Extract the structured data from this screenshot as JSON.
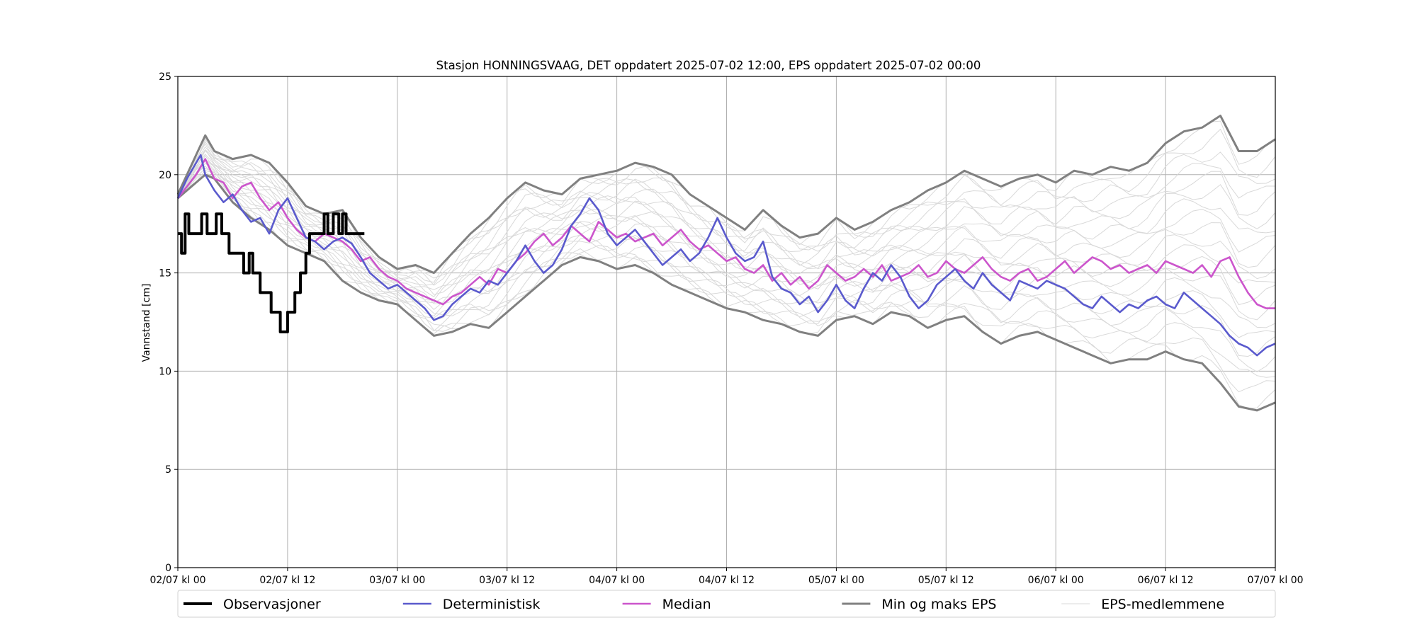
{
  "chart_data": {
    "type": "line",
    "title": "Stasjon HONNINGSVAAG, DET oppdatert 2025-07-02 12:00, EPS oppdatert 2025-07-02 00:00",
    "xlabel": "",
    "ylabel": "Vannstand [cm]",
    "xlim_hours": [
      0,
      120
    ],
    "ylim": [
      0,
      25
    ],
    "yticks": [
      0,
      5,
      10,
      15,
      20,
      25
    ],
    "grid": true,
    "legend_position": "bottom",
    "x_unit": "hours from 02/07 kl 00",
    "x_ticks": [
      {
        "h": 0,
        "label": "02/07 kl 00"
      },
      {
        "h": 12,
        "label": "02/07 kl 12"
      },
      {
        "h": 24,
        "label": "03/07 kl 00"
      },
      {
        "h": 36,
        "label": "03/07 kl 12"
      },
      {
        "h": 48,
        "label": "04/07 kl 00"
      },
      {
        "h": 60,
        "label": "04/07 kl 12"
      },
      {
        "h": 72,
        "label": "05/07 kl 00"
      },
      {
        "h": 84,
        "label": "05/07 kl 12"
      },
      {
        "h": 96,
        "label": "06/07 kl 00"
      },
      {
        "h": 108,
        "label": "06/07 kl 12"
      },
      {
        "h": 120,
        "label": "07/07 kl 00"
      }
    ],
    "series": [
      {
        "name": "Observasjoner",
        "color": "#000000",
        "width": 4,
        "step": true,
        "x": [
          0,
          0.4,
          0.8,
          1.2,
          2,
          2.6,
          3.2,
          4.2,
          4.8,
          5.2,
          5.6,
          6.0,
          7.2,
          7.8,
          8.2,
          8.6,
          9.0,
          9.6,
          10.2,
          10.6,
          11.2,
          12.0,
          12.4,
          12.8,
          13.4,
          14.0,
          14.4,
          14.8,
          15.2,
          15.6,
          16.0,
          16.4,
          17.0,
          17.6,
          18.0,
          18.4,
          18.8,
          19.2,
          19.6,
          20.4
        ],
        "y": [
          17,
          16,
          18,
          17,
          17,
          18,
          17,
          18,
          17,
          17,
          16,
          16,
          15,
          16,
          15,
          15,
          14,
          14,
          13,
          13,
          12,
          13,
          13,
          14,
          15,
          16,
          17,
          17,
          17,
          17,
          18,
          17,
          18,
          17,
          18,
          17,
          17,
          17,
          17,
          17
        ]
      },
      {
        "name": "Deterministisk",
        "color": "#5a5acd",
        "width": 2.6,
        "x": [
          0,
          1,
          2,
          2.5,
          3,
          4,
          5,
          6,
          7,
          8,
          9,
          10,
          11,
          12,
          13,
          14,
          15,
          16,
          17,
          18,
          19,
          20,
          21,
          22,
          23,
          24,
          25,
          26,
          27,
          28,
          29,
          30,
          31,
          32,
          33,
          34,
          35,
          36,
          37,
          38,
          39,
          40,
          41,
          42,
          43,
          44,
          45,
          46,
          47,
          48,
          49,
          50,
          51,
          52,
          53,
          54,
          55,
          56,
          57,
          58,
          59,
          60,
          61,
          62,
          63,
          64,
          65,
          66,
          67,
          68,
          69,
          70,
          71,
          72,
          73,
          74,
          75,
          76,
          77,
          78,
          79,
          80,
          81,
          82,
          83,
          84,
          85,
          86,
          87,
          88,
          89,
          90,
          91,
          92,
          93,
          94,
          95,
          96,
          97,
          98,
          99,
          100,
          101,
          102,
          103,
          104,
          105,
          106,
          107,
          108,
          109,
          110,
          111,
          112,
          113,
          114,
          115,
          116,
          117,
          118,
          119,
          120
        ],
        "y": [
          18.8,
          19.8,
          20.6,
          21.0,
          20.0,
          19.2,
          18.6,
          19.0,
          18.2,
          17.6,
          17.8,
          17.0,
          18.2,
          18.8,
          17.8,
          16.8,
          16.6,
          16.2,
          16.6,
          16.8,
          16.5,
          15.8,
          15.0,
          14.6,
          14.2,
          14.4,
          14.0,
          13.6,
          13.2,
          12.6,
          12.8,
          13.4,
          13.8,
          14.2,
          14.0,
          14.6,
          14.4,
          15.0,
          15.6,
          16.4,
          15.6,
          15.0,
          15.4,
          16.2,
          17.4,
          18.0,
          18.8,
          18.2,
          17.0,
          16.4,
          16.8,
          17.2,
          16.6,
          16.0,
          15.4,
          15.8,
          16.2,
          15.6,
          16.0,
          16.8,
          17.8,
          16.8,
          16.0,
          15.6,
          15.8,
          16.6,
          14.8,
          14.2,
          14.0,
          13.4,
          13.8,
          13.0,
          13.6,
          14.4,
          13.6,
          13.2,
          14.2,
          15.0,
          14.6,
          15.4,
          14.8,
          13.8,
          13.2,
          13.6,
          14.4,
          14.8,
          15.2,
          14.6,
          14.2,
          15.0,
          14.4,
          14.0,
          13.6,
          14.6,
          14.4,
          14.2,
          14.6,
          14.4,
          14.2,
          13.8,
          13.4,
          13.2,
          13.8,
          13.4,
          13.0,
          13.4,
          13.2,
          13.6,
          13.8,
          13.4,
          13.2,
          14.0,
          13.6,
          13.2,
          12.8,
          12.4,
          11.8,
          11.4,
          11.2,
          10.8,
          11.2,
          11.4
        ]
      },
      {
        "name": "Median",
        "color": "#cc55cc",
        "width": 2.6,
        "x": [
          0,
          1,
          2,
          3,
          4,
          5,
          6,
          7,
          8,
          9,
          10,
          11,
          12,
          13,
          14,
          15,
          16,
          17,
          18,
          19,
          20,
          21,
          22,
          23,
          24,
          25,
          26,
          27,
          28,
          29,
          30,
          31,
          32,
          33,
          34,
          35,
          36,
          37,
          38,
          39,
          40,
          41,
          42,
          43,
          44,
          45,
          46,
          47,
          48,
          49,
          50,
          51,
          52,
          53,
          54,
          55,
          56,
          57,
          58,
          59,
          60,
          61,
          62,
          63,
          64,
          65,
          66,
          67,
          68,
          69,
          70,
          71,
          72,
          73,
          74,
          75,
          76,
          77,
          78,
          79,
          80,
          81,
          82,
          83,
          84,
          85,
          86,
          87,
          88,
          89,
          90,
          91,
          92,
          93,
          94,
          95,
          96,
          97,
          98,
          99,
          100,
          101,
          102,
          103,
          104,
          105,
          106,
          107,
          108,
          109,
          110,
          111,
          112,
          113,
          114,
          115,
          116,
          117,
          118,
          119,
          120
        ],
        "y": [
          18.8,
          19.4,
          20.0,
          20.8,
          19.8,
          19.6,
          18.8,
          19.4,
          19.6,
          18.8,
          18.2,
          18.6,
          17.8,
          17.2,
          16.8,
          16.6,
          17.0,
          16.8,
          16.6,
          16.2,
          15.6,
          15.8,
          15.2,
          14.8,
          14.6,
          14.2,
          14.0,
          13.8,
          13.6,
          13.4,
          13.8,
          14.0,
          14.4,
          14.8,
          14.4,
          15.2,
          15.0,
          15.6,
          16.0,
          16.6,
          17.0,
          16.4,
          16.8,
          17.4,
          17.0,
          16.6,
          17.6,
          17.2,
          16.8,
          17.0,
          16.6,
          16.8,
          17.0,
          16.4,
          16.8,
          17.2,
          16.6,
          16.2,
          16.4,
          16.0,
          15.6,
          15.8,
          15.2,
          15.0,
          15.4,
          14.6,
          15.0,
          14.4,
          14.8,
          14.2,
          14.6,
          15.4,
          15.0,
          14.6,
          14.8,
          15.2,
          14.8,
          15.4,
          14.6,
          14.8,
          15.0,
          15.4,
          14.8,
          15.0,
          15.6,
          15.2,
          15.0,
          15.4,
          15.8,
          15.2,
          14.8,
          14.6,
          15.0,
          15.2,
          14.6,
          14.8,
          15.2,
          15.6,
          15.0,
          15.4,
          15.8,
          15.6,
          15.2,
          15.4,
          15.0,
          15.2,
          15.4,
          15.0,
          15.6,
          15.4,
          15.2,
          15.0,
          15.4,
          14.8,
          15.6,
          15.8,
          14.8,
          14.0,
          13.4,
          13.2,
          13.2
        ]
      }
    ],
    "envelope": {
      "name": "Min og maks EPS",
      "color": "#808080",
      "width": 3,
      "x": [
        0,
        2,
        3,
        4,
        6,
        8,
        10,
        12,
        14,
        16,
        18,
        20,
        22,
        24,
        26,
        28,
        30,
        32,
        34,
        36,
        38,
        40,
        42,
        44,
        46,
        48,
        50,
        52,
        54,
        56,
        58,
        60,
        62,
        64,
        66,
        68,
        70,
        72,
        74,
        76,
        78,
        80,
        82,
        84,
        86,
        88,
        90,
        92,
        94,
        96,
        98,
        100,
        102,
        104,
        106,
        108,
        110,
        112,
        114,
        116,
        118,
        120
      ],
      "max": [
        19.0,
        21.0,
        22.0,
        21.2,
        20.8,
        21.0,
        20.6,
        19.6,
        18.4,
        18.0,
        18.2,
        16.8,
        15.8,
        15.2,
        15.4,
        15.0,
        16.0,
        17.0,
        17.8,
        18.8,
        19.6,
        19.2,
        19.0,
        19.8,
        20.0,
        20.2,
        20.6,
        20.4,
        20.0,
        19.0,
        18.4,
        17.8,
        17.2,
        18.2,
        17.4,
        16.8,
        17.0,
        17.8,
        17.2,
        17.6,
        18.2,
        18.6,
        19.2,
        19.6,
        20.2,
        19.8,
        19.4,
        19.8,
        20.0,
        19.6,
        20.2,
        20.0,
        20.4,
        20.2,
        20.6,
        21.6,
        22.2,
        22.4,
        23.0,
        21.2,
        21.2,
        21.8
      ],
      "min": [
        18.8,
        19.6,
        20.0,
        19.8,
        18.6,
        17.8,
        17.2,
        16.4,
        16.0,
        15.6,
        14.6,
        14.0,
        13.6,
        13.4,
        12.6,
        11.8,
        12.0,
        12.4,
        12.2,
        13.0,
        13.8,
        14.6,
        15.4,
        15.8,
        15.6,
        15.2,
        15.4,
        15.0,
        14.4,
        14.0,
        13.6,
        13.2,
        13.0,
        12.6,
        12.4,
        12.0,
        11.8,
        12.6,
        12.8,
        12.4,
        13.0,
        12.8,
        12.2,
        12.6,
        12.8,
        12.0,
        11.4,
        11.8,
        12.0,
        11.6,
        11.2,
        10.8,
        10.4,
        10.6,
        10.6,
        11.0,
        10.6,
        10.4,
        9.4,
        8.2,
        8.0,
        8.4
      ]
    },
    "eps_members": {
      "name": "EPS-medlemmene",
      "color": "#d9d9d9",
      "count": 20
    },
    "legend": [
      "Observasjoner",
      "Deterministisk",
      "Median",
      "Min og maks EPS",
      "EPS-medlemmene"
    ]
  }
}
